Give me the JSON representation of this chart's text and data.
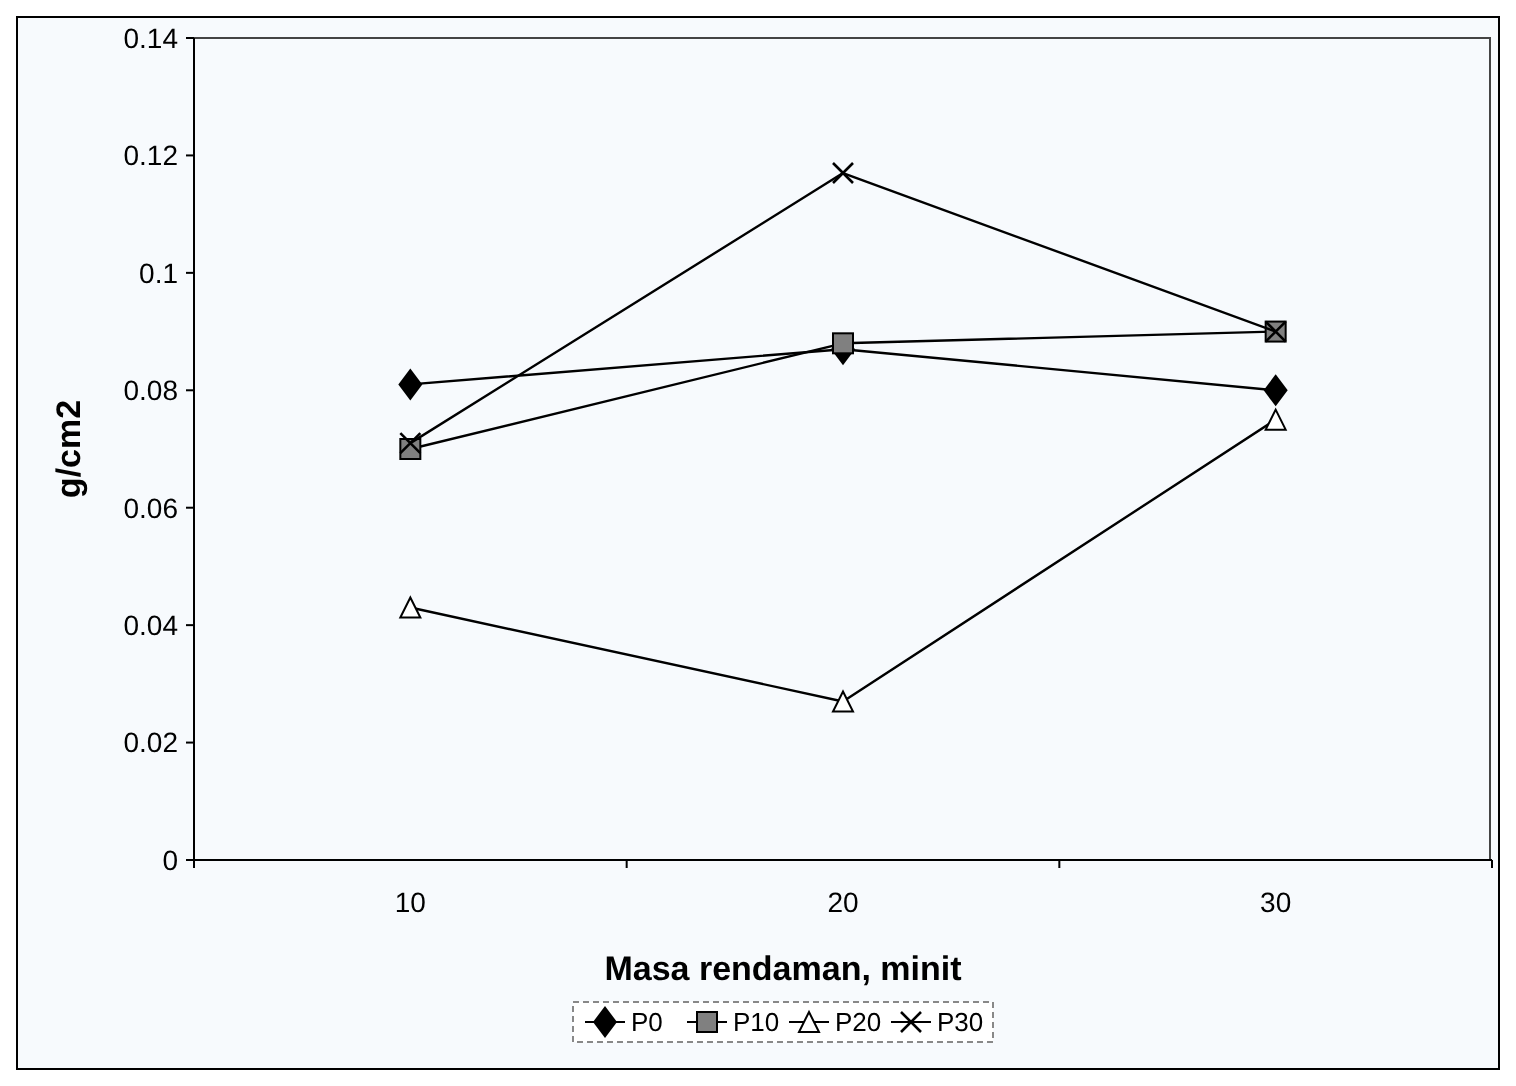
{
  "chart_data": {
    "type": "line",
    "xlabel": "Masa rendaman, minit",
    "ylabel": "g/cm2",
    "categories": [
      "10",
      "20",
      "30"
    ],
    "series": [
      {
        "name": "P0",
        "color": "#000000",
        "marker": "diamond",
        "values": [
          0.081,
          0.087,
          0.08
        ]
      },
      {
        "name": "P10",
        "color": "#000000",
        "marker": "square",
        "values": [
          0.07,
          0.088,
          0.09
        ]
      },
      {
        "name": "P20",
        "color": "#000000",
        "marker": "triangle",
        "values": [
          0.043,
          0.027,
          0.075
        ]
      },
      {
        "name": "P30",
        "color": "#000000",
        "marker": "cross",
        "values": [
          0.071,
          0.117,
          0.09
        ]
      }
    ],
    "ylim": [
      0,
      0.14
    ],
    "yticks": [
      0,
      0.02,
      0.04,
      0.06,
      0.08,
      0.1,
      0.12,
      0.14
    ],
    "grid": false,
    "legend": "bottom",
    "line_style": "solid"
  }
}
